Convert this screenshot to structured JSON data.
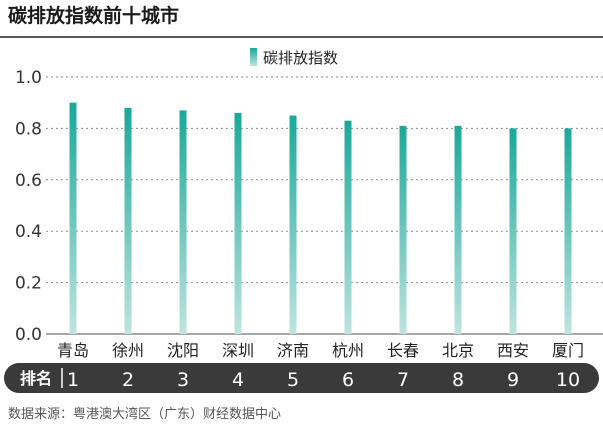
{
  "title": "碳排放指数前十城市",
  "source": "数据来源：粤港澳大湾区（广东）财经数据中心",
  "rank_label": "排名",
  "colors": {
    "bar_top": "#1aa89a",
    "bar_bottom": "#bfe4df",
    "grid": "#8a8a8a",
    "rank_bg": "#3a3a3a"
  },
  "chart_data": {
    "type": "bar",
    "title": "碳排放指数前十城市",
    "categories": [
      "青岛",
      "徐州",
      "沈阳",
      "深圳",
      "济南",
      "杭州",
      "长春",
      "北京",
      "西安",
      "厦门"
    ],
    "ranks": [
      "1",
      "2",
      "3",
      "4",
      "5",
      "6",
      "7",
      "8",
      "9",
      "10"
    ],
    "series": [
      {
        "name": "碳排放指数",
        "values": [
          0.9,
          0.88,
          0.87,
          0.86,
          0.85,
          0.83,
          0.81,
          0.81,
          0.8,
          0.8
        ]
      }
    ],
    "ylim": [
      0,
      1.0
    ],
    "yticks": [
      "0.0",
      "0.2",
      "0.4",
      "0.6",
      "0.8",
      "1.0"
    ],
    "grid": true,
    "legend_position": "top-center"
  }
}
